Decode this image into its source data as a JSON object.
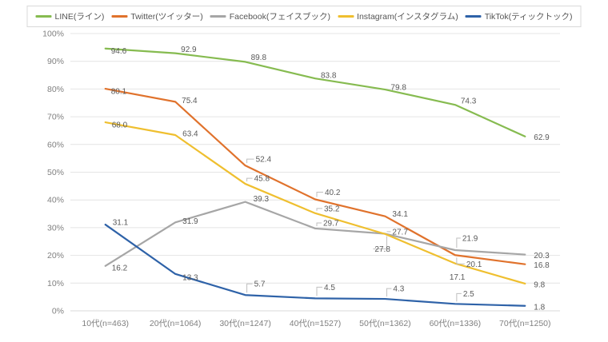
{
  "chart_data": {
    "type": "line",
    "title": "",
    "xlabel": "",
    "ylabel": "",
    "ylim": [
      0,
      100
    ],
    "y_tick_step": 10,
    "y_tick_labels": [
      "0%",
      "10%",
      "20%",
      "30%",
      "40%",
      "50%",
      "60%",
      "70%",
      "80%",
      "90%",
      "100%"
    ],
    "grid": true,
    "legend_position": "top",
    "data_labels": true,
    "categories": [
      "10代(n=463)",
      "20代(n=1064)",
      "30代(n=1247)",
      "40代(n=1527)",
      "50代(n=1362)",
      "60代(n=1336)",
      "70代(n=1250)"
    ],
    "series": [
      {
        "name": "LINE(ライン)",
        "color": "#86BB50",
        "values": [
          94.6,
          92.9,
          89.8,
          83.8,
          79.8,
          74.3,
          62.9
        ]
      },
      {
        "name": "Twitter(ツイッター)",
        "color": "#E0722C",
        "values": [
          80.1,
          75.4,
          52.4,
          40.2,
          34.1,
          20.1,
          16.8
        ]
      },
      {
        "name": "Facebook(フェイスブック)",
        "color": "#A6A6A6",
        "values": [
          16.2,
          31.9,
          39.3,
          29.7,
          27.8,
          21.9,
          20.3
        ]
      },
      {
        "name": "Instagram(インスタグラム)",
        "color": "#EFBF2F",
        "values": [
          68.0,
          63.4,
          45.8,
          35.2,
          27.7,
          17.1,
          9.8
        ]
      },
      {
        "name": "TikTok(ティックトック)",
        "color": "#2E62A8",
        "values": [
          31.1,
          13.3,
          5.7,
          4.5,
          4.3,
          2.5,
          1.8
        ]
      }
    ]
  },
  "colors": {
    "background": "#FFFFFF",
    "gridline": "#E4E4E4",
    "axis_line": "#D9D9D9",
    "axis_text": "#808080",
    "data_label_text": "#595959",
    "leader_line": "#BFBFBF",
    "legend_border": "#D9D9D9",
    "legend_text": "#555555"
  }
}
